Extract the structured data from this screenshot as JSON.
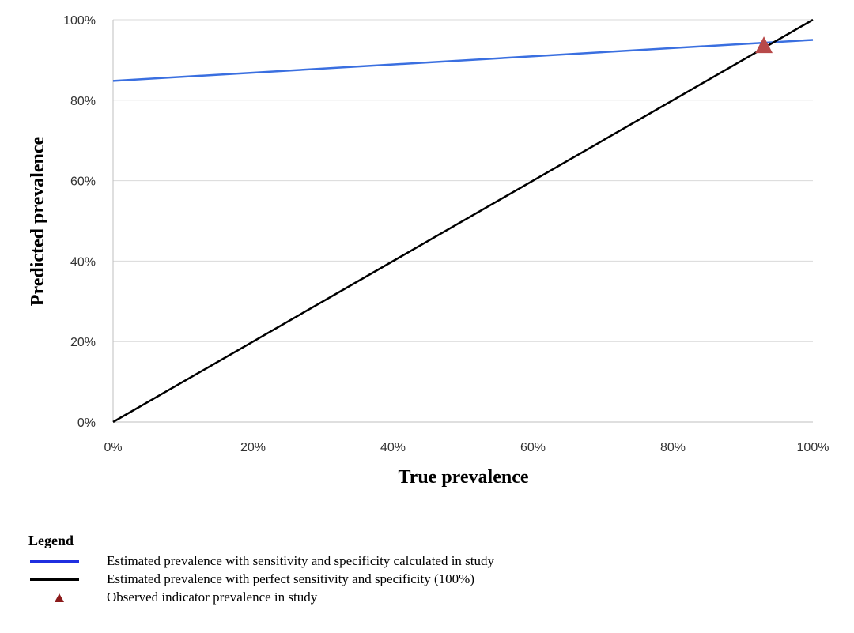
{
  "chart_data": {
    "type": "line",
    "title": "",
    "xlabel": "True prevalence",
    "ylabel": "Predicted prevalence",
    "xlim": [
      0,
      100
    ],
    "ylim": [
      0,
      100
    ],
    "x_ticks": [
      "0%",
      "20%",
      "40%",
      "60%",
      "80%",
      "100%"
    ],
    "y_ticks": [
      "0%",
      "20%",
      "40%",
      "60%",
      "80%",
      "100%"
    ],
    "grid": "horizontal",
    "series": [
      {
        "name": "Estimated prevalence with sensitivity and specificity calculated in study",
        "type": "line",
        "color": "#3a6fe0",
        "x": [
          0,
          100
        ],
        "y": [
          84.8,
          95.0
        ]
      },
      {
        "name": "Estimated prevalence with perfect sensitivity and specificity (100%)",
        "type": "line",
        "color": "#000000",
        "x": [
          0,
          100
        ],
        "y": [
          0,
          100
        ]
      },
      {
        "name": "Observed indicator prevalence in study",
        "type": "scatter",
        "marker": "triangle",
        "color": "#b84a4a",
        "x": [
          93
        ],
        "y": [
          93.5
        ]
      }
    ],
    "legend": {
      "title": "Legend",
      "placement": "bottom-left"
    }
  }
}
